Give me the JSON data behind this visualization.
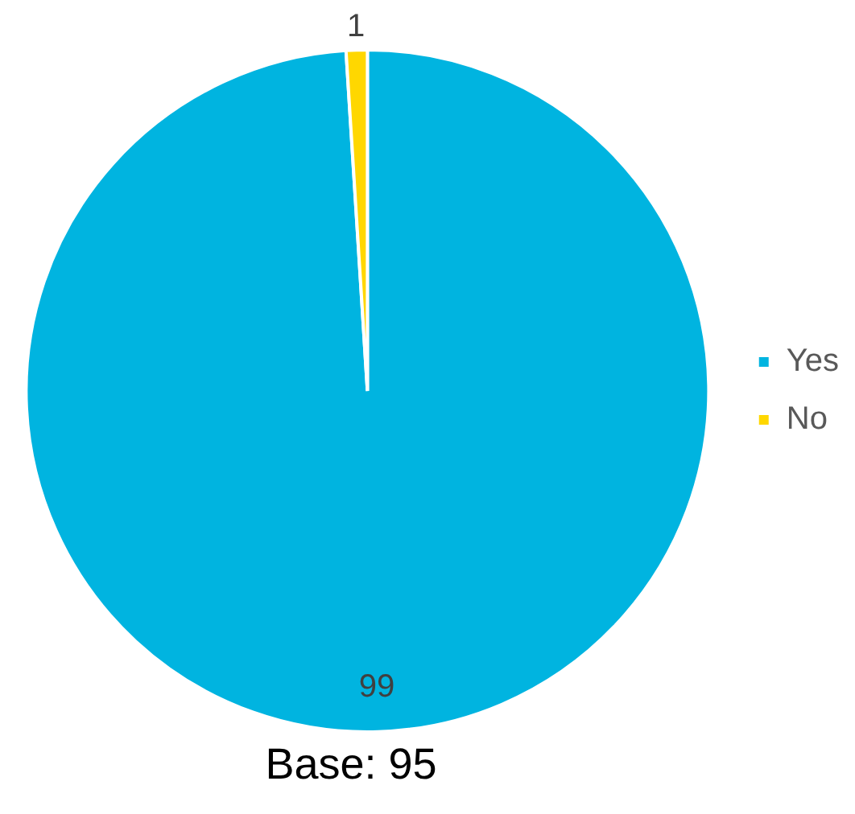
{
  "chart_data": {
    "type": "pie",
    "categories": [
      "Yes",
      "No"
    ],
    "values": [
      99,
      1
    ],
    "colors": [
      "#00b4e0",
      "#ffd700"
    ],
    "data_labels": true,
    "legend": "right",
    "annotations": [
      "Base: 95"
    ]
  }
}
